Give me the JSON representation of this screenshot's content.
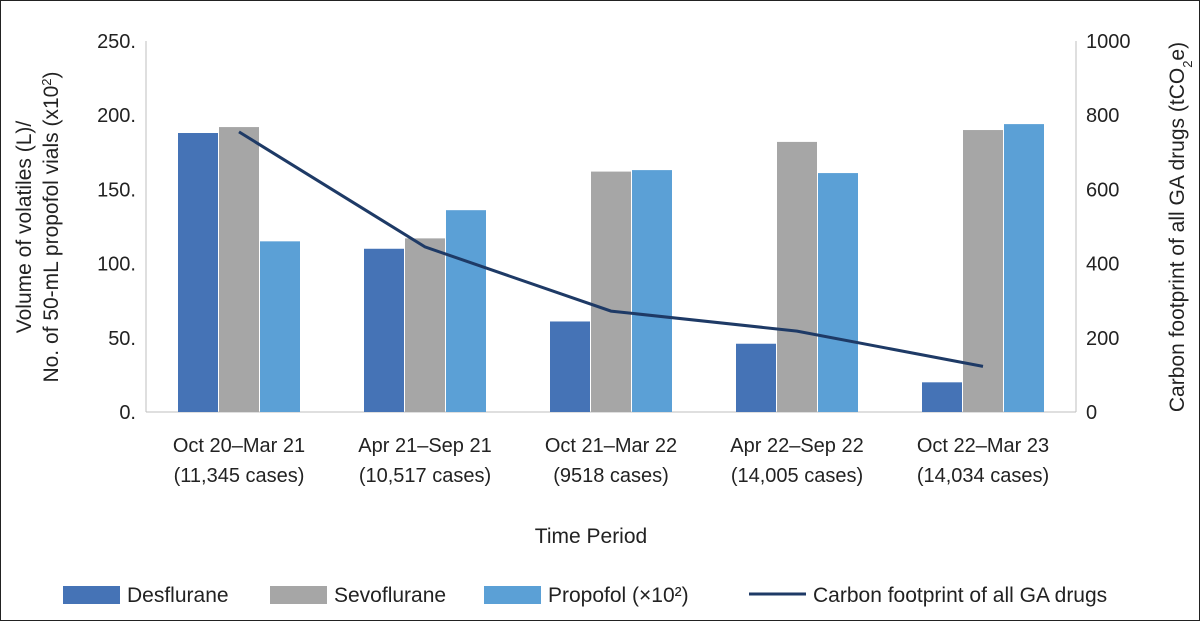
{
  "chart_data": {
    "type": "bar",
    "categories": [
      [
        "Oct 20–Mar 21",
        "(11,345 cases)"
      ],
      [
        "Apr 21–Sep 21",
        "(10,517 cases)"
      ],
      [
        "Oct 21–Mar 22",
        "(9518 cases)"
      ],
      [
        "Apr 22–Sep 22",
        "(14,005 cases)"
      ],
      [
        "Oct 22–Mar 23",
        "(14,034 cases)"
      ]
    ],
    "series": [
      {
        "name": "Desflurane",
        "type": "bar",
        "color": "#4573b6",
        "values": [
          188,
          110,
          61,
          46,
          20
        ]
      },
      {
        "name": "Sevoflurane",
        "type": "bar",
        "color": "#a6a6a6",
        "values": [
          192,
          117,
          162,
          182,
          190
        ]
      },
      {
        "name": "Propofol (×10²)",
        "type": "bar",
        "color": "#5ba0d6",
        "values": [
          115,
          136,
          163,
          161,
          194
        ]
      },
      {
        "name": "Carbon footprint of all GA drugs",
        "type": "line",
        "axis": "right",
        "color": "#1e3a66",
        "values": [
          755,
          445,
          272,
          218,
          123
        ]
      }
    ],
    "y_left": {
      "label": [
        "Volume of volatiles (L)/",
        "No. of 50-mL propofol vials (x10",
        "2",
        ")"
      ],
      "range": [
        0,
        250
      ],
      "ticks": [
        "0.",
        "50.",
        "100.",
        "150.",
        "200.",
        "250."
      ]
    },
    "y_right": {
      "label": [
        "Carbon footprint of all GA drugs (tCO",
        "2",
        "e)"
      ],
      "range": [
        0,
        1000
      ],
      "ticks": [
        "0",
        "200",
        "400",
        "600",
        "800",
        "1000"
      ]
    },
    "xlabel": "Time Period",
    "grid": false,
    "legend_position": "bottom"
  }
}
